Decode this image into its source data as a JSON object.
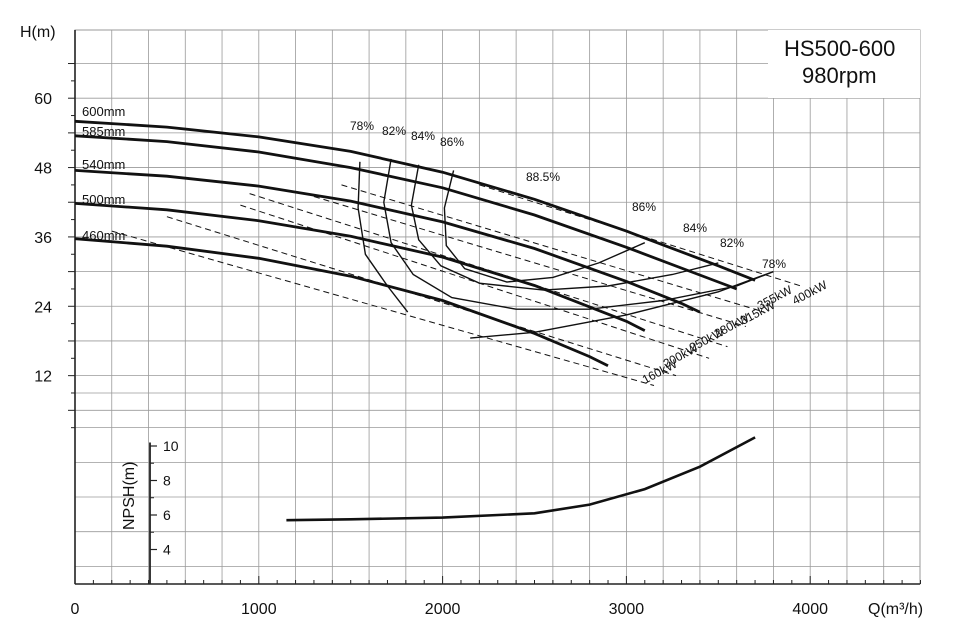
{
  "chart_data": {
    "type": "line",
    "title": "HS500-600",
    "subtitle": "980rpm",
    "ylabel": "H(m)",
    "xlabel": "Q(m³/h)",
    "npsh_label": "NPSH(m)",
    "xlim": [
      0,
      4600
    ],
    "ylim": [
      0,
      70
    ],
    "x_ticks": [
      0,
      1000,
      2000,
      3000,
      4000
    ],
    "y_ticks": [
      12,
      24,
      36,
      48,
      60
    ],
    "npsh_ylim": [
      2,
      10
    ],
    "npsh_ticks": [
      4,
      6,
      8,
      10
    ],
    "grid": true,
    "impeller_curves": [
      {
        "name": "600mm",
        "points": [
          [
            0,
            56
          ],
          [
            500,
            55
          ],
          [
            1000,
            53.3
          ],
          [
            1500,
            50.8
          ],
          [
            2000,
            47.2
          ],
          [
            2500,
            42.5
          ],
          [
            3000,
            37
          ],
          [
            3500,
            31
          ],
          [
            3700,
            28.5
          ]
        ]
      },
      {
        "name": "585mm",
        "points": [
          [
            0,
            53.5
          ],
          [
            500,
            52.5
          ],
          [
            1000,
            50.7
          ],
          [
            1500,
            48
          ],
          [
            2000,
            44.5
          ],
          [
            2500,
            39.8
          ],
          [
            3000,
            34.2
          ],
          [
            3500,
            28.2
          ],
          [
            3600,
            27
          ]
        ]
      },
      {
        "name": "540mm",
        "points": [
          [
            0,
            47.5
          ],
          [
            500,
            46.5
          ],
          [
            1000,
            44.8
          ],
          [
            1500,
            42.2
          ],
          [
            2000,
            38.6
          ],
          [
            2500,
            34
          ],
          [
            3000,
            28.3
          ],
          [
            3300,
            24.5
          ],
          [
            3400,
            23
          ]
        ]
      },
      {
        "name": "500mm",
        "points": [
          [
            0,
            41.8
          ],
          [
            500,
            40.7
          ],
          [
            1000,
            38.8
          ],
          [
            1500,
            36.1
          ],
          [
            2000,
            32.5
          ],
          [
            2500,
            27.6
          ],
          [
            3000,
            21.4
          ],
          [
            3100,
            19.8
          ]
        ]
      },
      {
        "name": "460mm",
        "points": [
          [
            0,
            35.7
          ],
          [
            500,
            34.4
          ],
          [
            1000,
            32.3
          ],
          [
            1500,
            29.2
          ],
          [
            2000,
            25
          ],
          [
            2500,
            19.3
          ],
          [
            2800,
            15.3
          ],
          [
            2900,
            13.7
          ]
        ]
      }
    ],
    "efficiency_curves": [
      {
        "name": "78%",
        "points": [
          [
            1550,
            49
          ],
          [
            1540,
            41
          ],
          [
            1580,
            33
          ],
          [
            1700,
            27.5
          ],
          [
            1810,
            23
          ]
        ]
      },
      {
        "name": "82%",
        "points": [
          [
            1720,
            49.5
          ],
          [
            1680,
            42
          ],
          [
            1720,
            35
          ],
          [
            1840,
            29.5
          ],
          [
            2050,
            25.5
          ],
          [
            2400,
            23.5
          ],
          [
            2800,
            23.5
          ],
          [
            3200,
            25
          ],
          [
            3600,
            27.5
          ],
          [
            3800,
            30
          ]
        ]
      },
      {
        "name": "84%",
        "points": [
          [
            1870,
            48.5
          ],
          [
            1830,
            41.5
          ],
          [
            1870,
            35.5
          ],
          [
            1990,
            31
          ],
          [
            2200,
            28
          ],
          [
            2550,
            26.8
          ],
          [
            2900,
            27.5
          ],
          [
            3250,
            29.5
          ],
          [
            3500,
            31.5
          ]
        ]
      },
      {
        "name": "86%",
        "points": [
          [
            2060,
            47.5
          ],
          [
            2010,
            41
          ],
          [
            2020,
            34.5
          ],
          [
            2120,
            30.5
          ],
          [
            2350,
            28.2
          ],
          [
            2600,
            29
          ],
          [
            2850,
            31.5
          ],
          [
            3100,
            35
          ]
        ]
      },
      {
        "name": "right 78%",
        "points": [
          [
            2150,
            18.5
          ],
          [
            2500,
            19.5
          ],
          [
            3000,
            22.5
          ],
          [
            3500,
            26.5
          ],
          [
            3800,
            30
          ]
        ]
      }
    ],
    "efficiency_labels": [
      "78%",
      "82%",
      "84%",
      "86%",
      "88.5%",
      "86%",
      "84%",
      "82%",
      "78%"
    ],
    "power_lines": [
      {
        "name": "400kW",
        "points": [
          [
            2200,
            45
          ],
          [
            3950,
            27.5
          ]
        ]
      },
      {
        "name": "355kW",
        "points": [
          [
            1450,
            45
          ],
          [
            3750,
            23
          ]
        ]
      },
      {
        "name": "315kW",
        "points": [
          [
            1300,
            43
          ],
          [
            3650,
            20.5
          ]
        ]
      },
      {
        "name": "280kW",
        "points": [
          [
            950,
            43.5
          ],
          [
            3550,
            17
          ]
        ]
      },
      {
        "name": "250kW",
        "points": [
          [
            900,
            41.5
          ],
          [
            3450,
            15
          ]
        ]
      },
      {
        "name": "200kW",
        "points": [
          [
            500,
            39.5
          ],
          [
            3270,
            12
          ]
        ]
      },
      {
        "name": "160kW",
        "points": [
          [
            200,
            37
          ],
          [
            3150,
            10.3
          ]
        ]
      }
    ],
    "npsh_curve": {
      "name": "NPSH",
      "points": [
        [
          1150,
          5.7
        ],
        [
          1500,
          5.75
        ],
        [
          2000,
          5.85
        ],
        [
          2500,
          6.1
        ],
        [
          2800,
          6.6
        ],
        [
          3100,
          7.5
        ],
        [
          3400,
          8.8
        ],
        [
          3700,
          10.5
        ]
      ]
    }
  },
  "colors": {
    "grid": "#9a9a9a",
    "curve": "#111111",
    "axis": "#222222"
  }
}
